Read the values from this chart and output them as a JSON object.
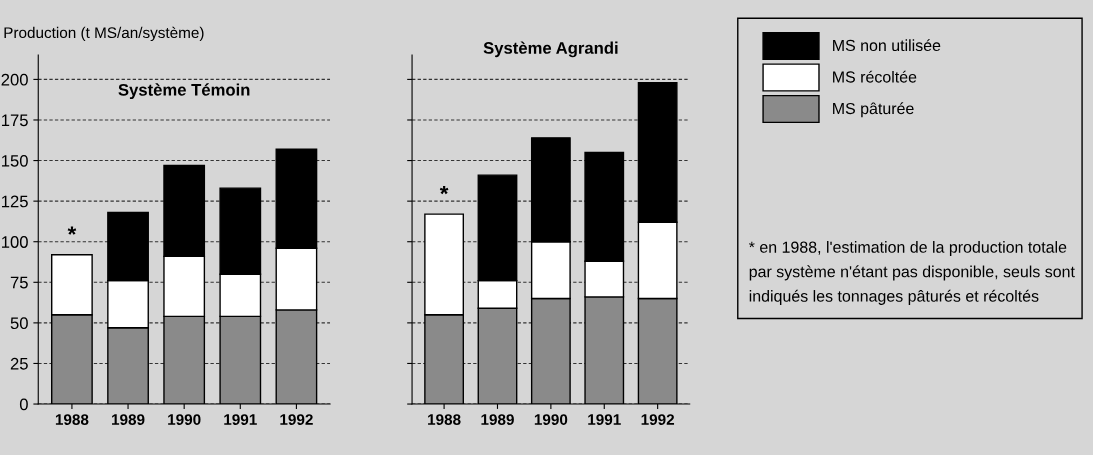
{
  "chart_data": [
    {
      "type": "bar",
      "stacked": true,
      "title": "Système Témoin",
      "ylabel": "Production (t MS/an/système)",
      "categories": [
        "1988",
        "1989",
        "1990",
        "1991",
        "1992"
      ],
      "series": [
        {
          "name": "MS pâturée",
          "color": "#8a8a8a",
          "values": [
            55,
            47,
            54,
            54,
            58
          ]
        },
        {
          "name": "MS récoltée",
          "color": "#ffffff",
          "values": [
            37,
            29,
            37,
            26,
            38
          ]
        },
        {
          "name": "MS non utilisée",
          "color": "#000000",
          "values": [
            null,
            42,
            56,
            53,
            61
          ]
        }
      ],
      "ylim": [
        0,
        215
      ],
      "yticks": [
        0,
        25,
        50,
        75,
        100,
        125,
        150,
        175,
        200
      ],
      "grid": "y",
      "legend": "right",
      "annotations": [
        {
          "text": "*",
          "x": "1988",
          "y": 92
        }
      ]
    },
    {
      "type": "bar",
      "stacked": true,
      "title": "Système Agrandi",
      "categories": [
        "1988",
        "1989",
        "1990",
        "1991",
        "1992"
      ],
      "series": [
        {
          "color": "#8a8a8a",
          "values": [
            55,
            59,
            65,
            66,
            65
          ]
        },
        {
          "color": "#ffffff",
          "values": [
            62,
            17,
            35,
            22,
            47
          ]
        },
        {
          "color": "#000000",
          "values": [
            null,
            65,
            64,
            67,
            86
          ]
        }
      ],
      "ylim": [
        0,
        215
      ],
      "yticks": [
        0,
        25,
        50,
        75,
        100,
        125,
        150,
        175,
        200
      ],
      "grid": "y",
      "tick_labels": "x",
      "annotations": [
        {
          "text": "*",
          "x": "1988",
          "y": 117
        },
        "* en 1988, l'estimation de la production totale par système n'étant pas disponible, seuls sont indiqués les tonnages pâturés et récoltés"
      ]
    }
  ]
}
